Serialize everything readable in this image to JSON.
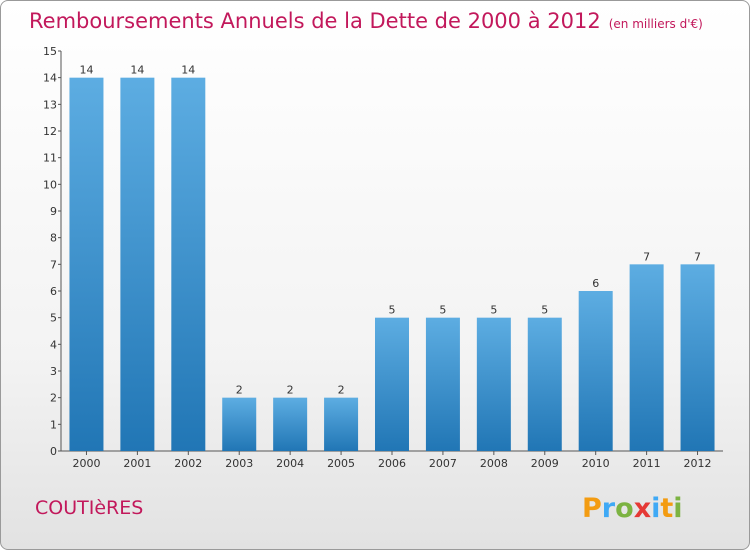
{
  "header": {
    "title": "Remboursements Annuels de la Dette de 2000 à 2012",
    "subtitle": "(en milliers d'€)"
  },
  "footer": {
    "commune": "COUTIèRES",
    "brand": {
      "text": "Proxiti",
      "letters": [
        {
          "ch": "P",
          "color": "#f39c12"
        },
        {
          "ch": "r",
          "color": "#3fa9f5"
        },
        {
          "ch": "o",
          "color": "#7cb342"
        },
        {
          "ch": "x",
          "color": "#e53935"
        },
        {
          "ch": "i",
          "color": "#3fa9f5"
        },
        {
          "ch": "t",
          "color": "#f39c12"
        },
        {
          "ch": "i",
          "color": "#7cb342"
        }
      ]
    }
  },
  "chart_data": {
    "type": "bar",
    "title": "Remboursements Annuels de la Dette de 2000 à 2012",
    "subtitle": "(en milliers d'€)",
    "categories": [
      "2000",
      "2001",
      "2002",
      "2003",
      "2004",
      "2005",
      "2006",
      "2007",
      "2008",
      "2009",
      "2010",
      "2011",
      "2012"
    ],
    "values": [
      14,
      14,
      14,
      2,
      2,
      2,
      5,
      5,
      5,
      5,
      6,
      7,
      7
    ],
    "data_labels": [
      "14",
      "14",
      "14",
      "2",
      "2",
      "2",
      "5",
      "5",
      "5",
      "5",
      "6",
      "7",
      "7"
    ],
    "xlabel": "",
    "ylabel": "",
    "ylim": [
      0,
      15
    ],
    "yticks": [
      "0",
      "1",
      "2",
      "3",
      "4",
      "5",
      "6",
      "7",
      "8",
      "9",
      "10",
      "11",
      "12",
      "13",
      "14",
      "15"
    ],
    "grid": false,
    "colors": {
      "bar_light": "#5dade2",
      "bar_dark": "#2176b5",
      "axis": "#555555",
      "accent": "#c2185b"
    }
  }
}
